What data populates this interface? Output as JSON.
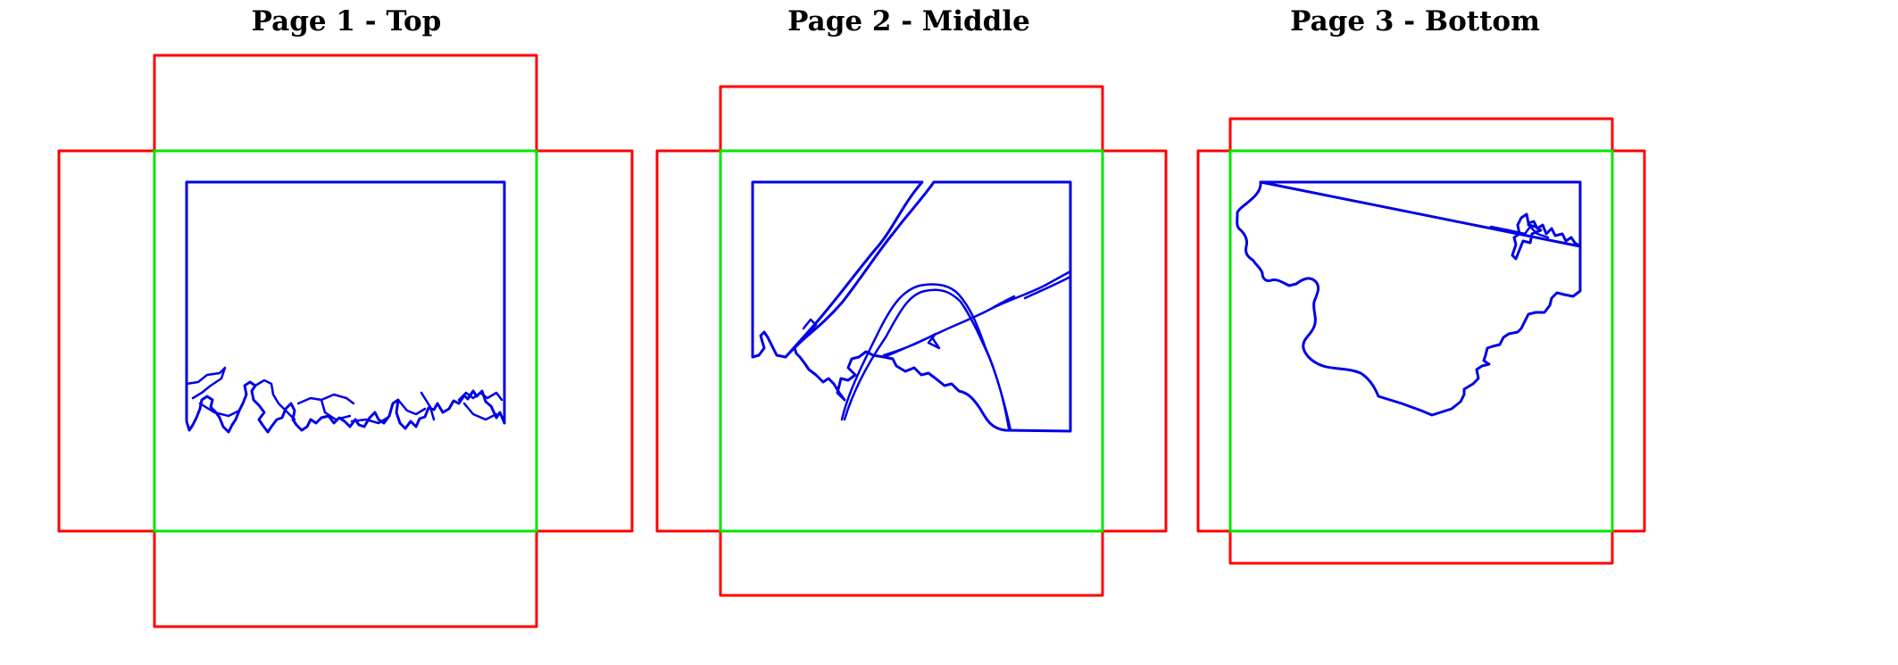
{
  "titles": {
    "page1": "Page 1 - Top",
    "page2": "Page 2 - Middle",
    "page3": "Page 3 - Bottom"
  },
  "colors": {
    "outline": "#ff0000",
    "base": "#00e600",
    "cut": "#0000e6",
    "background": "#ffffff",
    "text": "#000000"
  }
}
